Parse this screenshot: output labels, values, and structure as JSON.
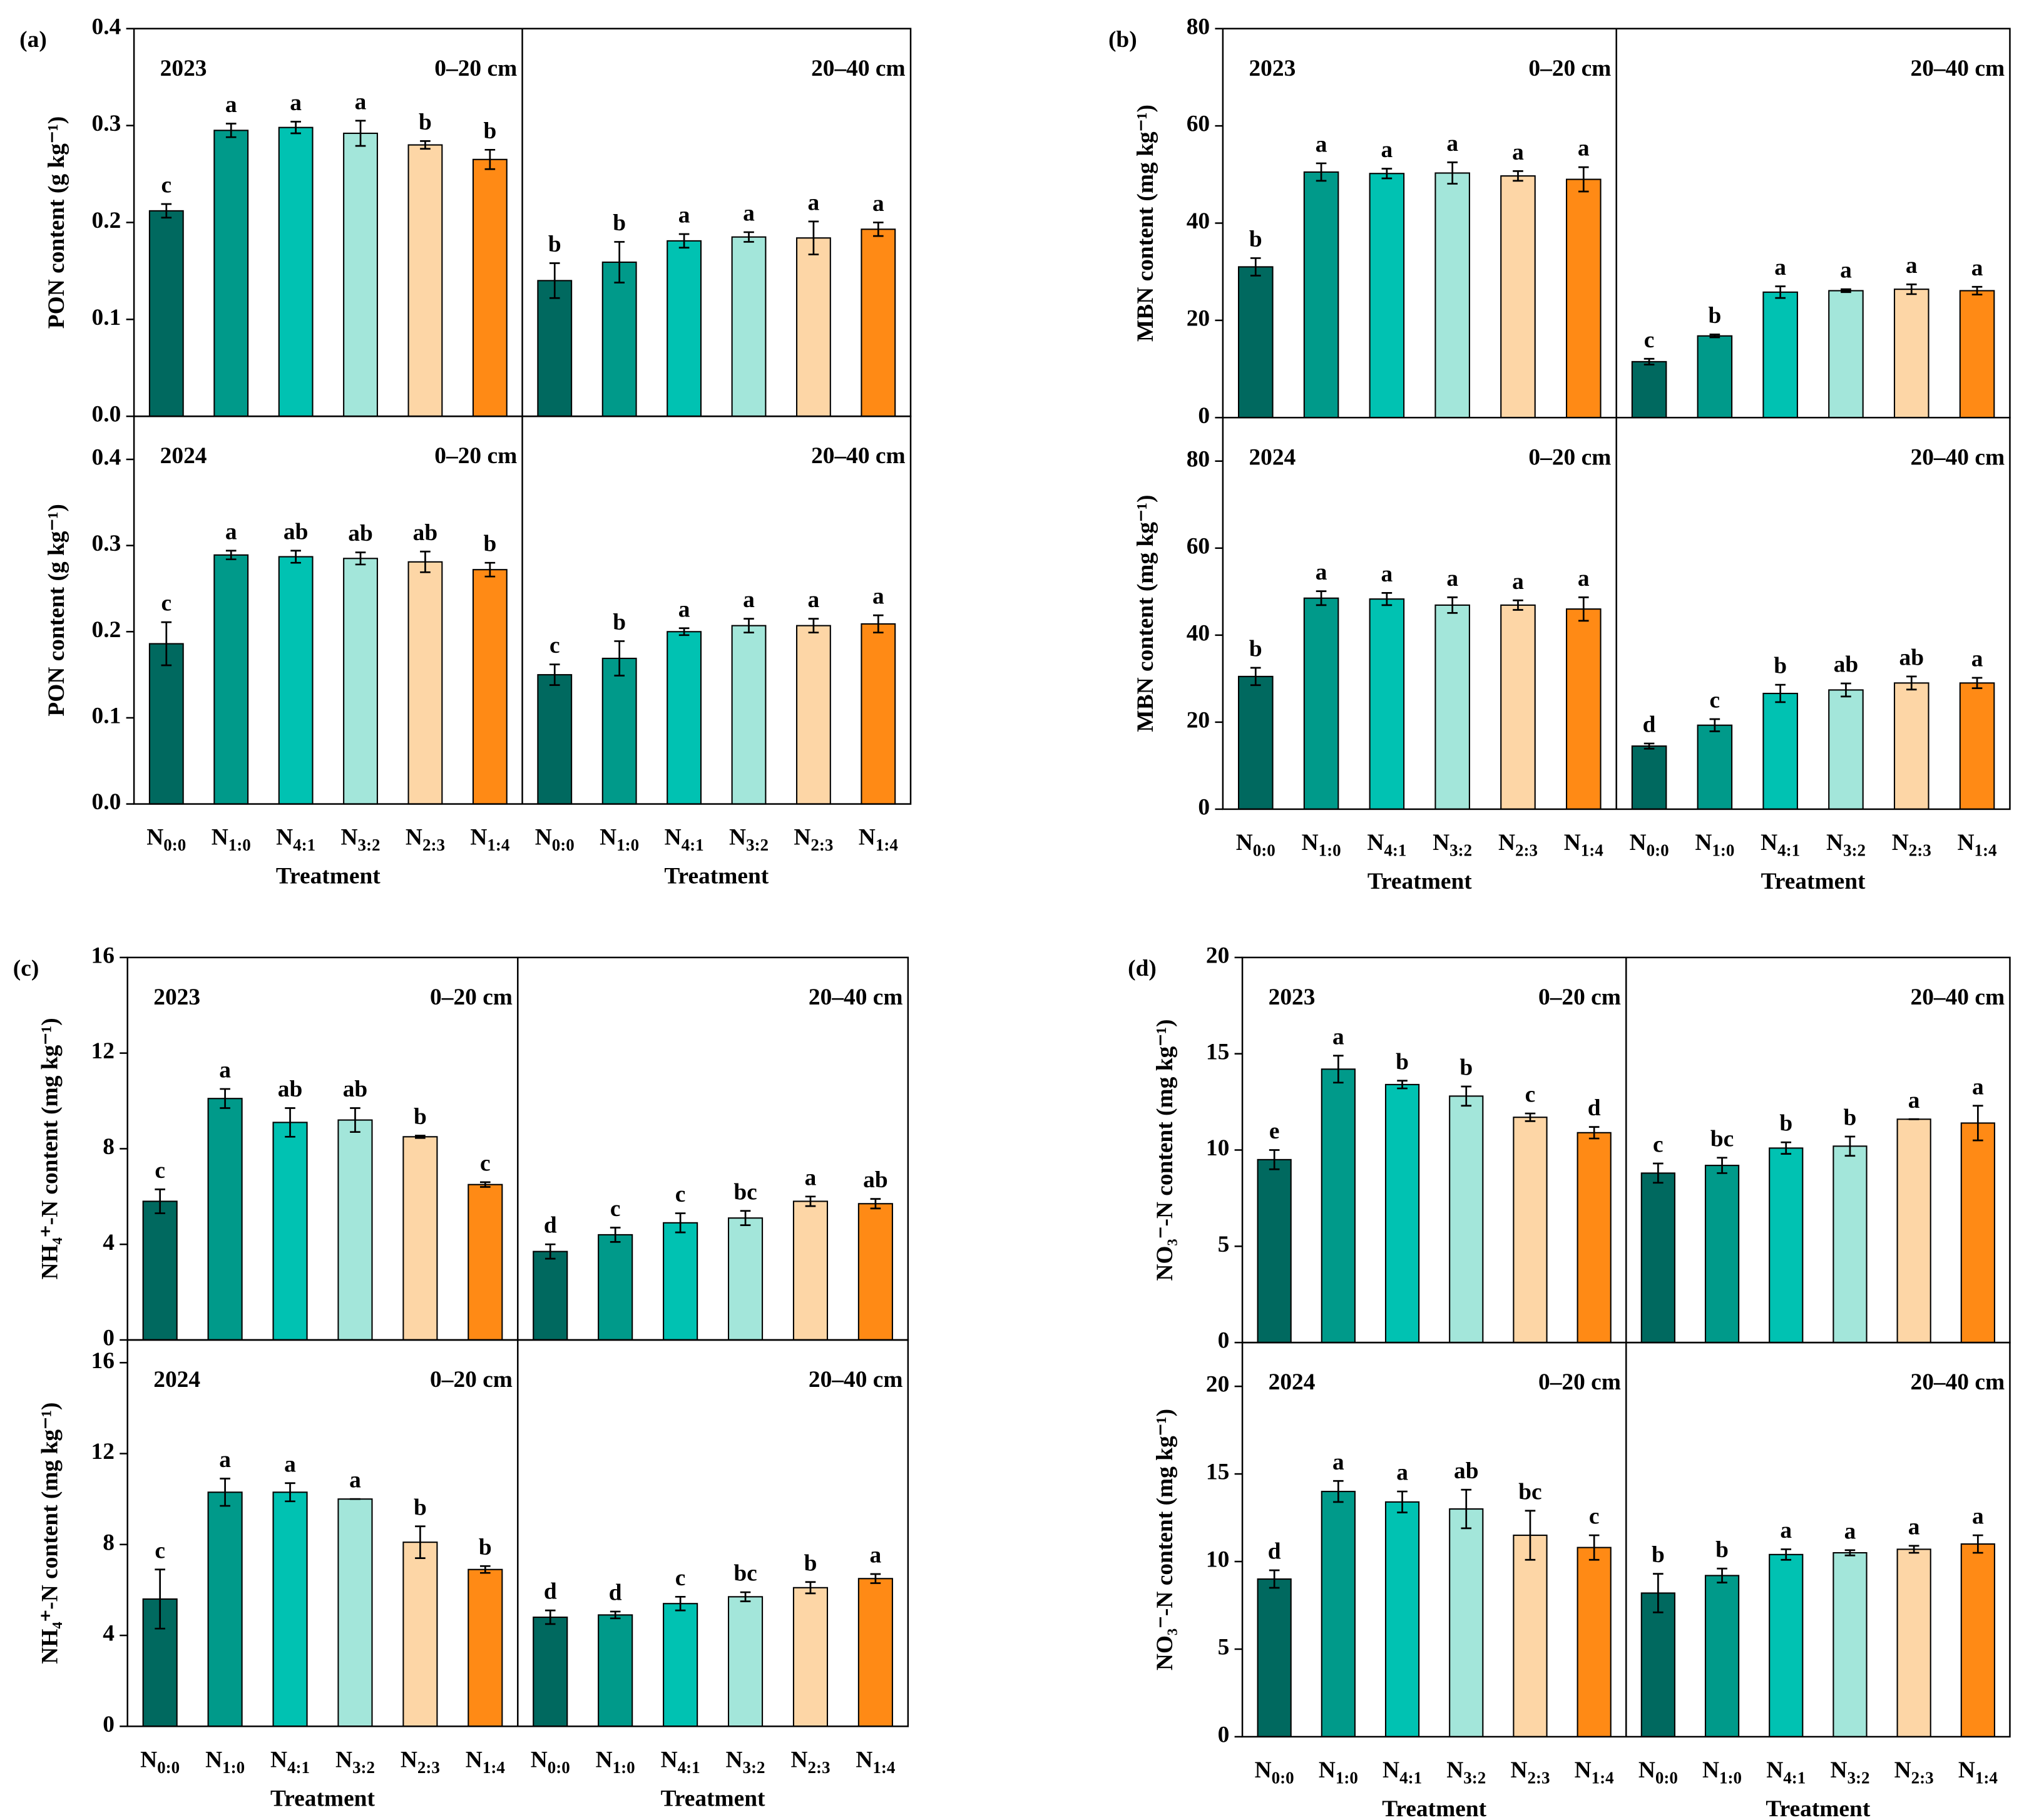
{
  "chart_data": [
    {
      "type": "bar",
      "panel": "(a)",
      "year": "2023",
      "ylabel": "PON content (g kg⁻¹)",
      "categories": [
        "N0:0",
        "N1:0",
        "N4:1",
        "N3:2",
        "N2:3",
        "N1:4"
      ],
      "colors": [
        "#00695f",
        "#009a8a",
        "#00c2b2",
        "#a3e6da",
        "#fdd6a6",
        "#ff8a15"
      ],
      "ylim": [
        0,
        0.4
      ],
      "yticks": [
        {
          "value": 0,
          "label": "0.0"
        },
        0.1,
        0.2,
        0.3,
        0.4
      ],
      "series": [
        {
          "name": "0–20 cm",
          "values": [
            0.212,
            0.295,
            0.298,
            0.292,
            0.28,
            0.265
          ],
          "errors": [
            0.007,
            0.007,
            0.006,
            0.013,
            0.004,
            0.01
          ],
          "letters": [
            "c",
            "a",
            "a",
            "a",
            "b",
            "b"
          ]
        },
        {
          "name": "20–40 cm",
          "values": [
            0.14,
            0.159,
            0.181,
            0.185,
            0.184,
            0.193
          ],
          "errors": [
            0.018,
            0.021,
            0.007,
            0.005,
            0.017,
            0.007
          ],
          "letters": [
            "b",
            "b",
            "a",
            "a",
            "a",
            "a"
          ]
        }
      ]
    },
    {
      "type": "bar",
      "year": "2024",
      "ylabel": "PON content (g kg⁻¹)",
      "xlabel": "Treatment",
      "categories": [
        "N0:0",
        "N1:0",
        "N4:1",
        "N3:2",
        "N2:3",
        "N1:4"
      ],
      "colors": [
        "#00695f",
        "#009a8a",
        "#00c2b2",
        "#a3e6da",
        "#fdd6a6",
        "#ff8a15"
      ],
      "ylim": [
        0,
        0.45
      ],
      "yticks": [
        {
          "value": 0,
          "label": "0.0"
        },
        0.1,
        0.2,
        0.3,
        0.4
      ],
      "series": [
        {
          "name": "0–20 cm",
          "values": [
            0.186,
            0.289,
            0.287,
            0.285,
            0.281,
            0.272
          ],
          "errors": [
            0.025,
            0.005,
            0.007,
            0.007,
            0.012,
            0.008
          ],
          "letters": [
            "c",
            "a",
            "ab",
            "ab",
            "ab",
            "b"
          ]
        },
        {
          "name": "20–40 cm",
          "values": [
            0.15,
            0.169,
            0.2,
            0.207,
            0.207,
            0.209
          ],
          "errors": [
            0.012,
            0.02,
            0.004,
            0.008,
            0.008,
            0.01
          ],
          "letters": [
            "c",
            "b",
            "a",
            "a",
            "a",
            "a"
          ]
        }
      ]
    },
    {
      "type": "bar",
      "panel": "(b)",
      "year": "2023",
      "ylabel": "MBN content (mg kg⁻¹)",
      "categories": [
        "N0:0",
        "N1:0",
        "N4:1",
        "N3:2",
        "N2:3",
        "N1:4"
      ],
      "colors": [
        "#00695f",
        "#009a8a",
        "#00c2b2",
        "#a3e6da",
        "#fdd6a6",
        "#ff8a15"
      ],
      "ylim": [
        0,
        80
      ],
      "yticks": [
        0,
        20,
        40,
        60,
        80
      ],
      "series": [
        {
          "name": "0–20 cm",
          "values": [
            31,
            50.5,
            50.2,
            50.3,
            49.7,
            49
          ],
          "errors": [
            1.8,
            1.8,
            1,
            2.2,
            1,
            2.5
          ],
          "letters": [
            "b",
            "a",
            "a",
            "a",
            "a",
            "a"
          ]
        },
        {
          "name": "20–40 cm",
          "values": [
            11.5,
            16.8,
            25.8,
            26.1,
            26.4,
            26.1
          ],
          "errors": [
            0.6,
            0.3,
            1.2,
            0.3,
            1,
            0.8
          ],
          "letters": [
            "c",
            "b",
            "a",
            "a",
            "a",
            "a"
          ]
        }
      ]
    },
    {
      "type": "bar",
      "year": "2024",
      "ylabel": "MBN content (mg kg⁻¹)",
      "xlabel": "Treatment",
      "categories": [
        "N0:0",
        "N1:0",
        "N4:1",
        "N3:2",
        "N2:3",
        "N1:4"
      ],
      "colors": [
        "#00695f",
        "#009a8a",
        "#00c2b2",
        "#a3e6da",
        "#fdd6a6",
        "#ff8a15"
      ],
      "ylim": [
        0,
        90
      ],
      "yticks": [
        0,
        20,
        40,
        60,
        80
      ],
      "series": [
        {
          "name": "0–20 cm",
          "values": [
            30.5,
            48.5,
            48.3,
            46.9,
            46.9,
            46
          ],
          "errors": [
            2,
            1.6,
            1.4,
            1.8,
            1.1,
            2.7
          ],
          "letters": [
            "b",
            "a",
            "a",
            "a",
            "a",
            "a"
          ]
        },
        {
          "name": "20–40 cm",
          "values": [
            14.5,
            19.3,
            26.6,
            27.4,
            29,
            29
          ],
          "errors": [
            0.6,
            1.4,
            2,
            1.5,
            1.5,
            1.2
          ],
          "letters": [
            "d",
            "c",
            "b",
            "ab",
            "ab",
            "a"
          ]
        }
      ]
    },
    {
      "type": "bar",
      "panel": "(c)",
      "year": "2023",
      "ylabel": "NH₄⁺-N content (mg kg⁻¹)",
      "categories": [
        "N0:0",
        "N1:0",
        "N4:1",
        "N3:2",
        "N2:3",
        "N1:4"
      ],
      "colors": [
        "#00695f",
        "#009a8a",
        "#00c2b2",
        "#a3e6da",
        "#fdd6a6",
        "#ff8a15"
      ],
      "ylim": [
        0,
        16
      ],
      "yticks": [
        0,
        4,
        8,
        12,
        16
      ],
      "series": [
        {
          "name": "0–20 cm",
          "values": [
            5.8,
            10.1,
            9.1,
            9.2,
            8.5,
            6.5
          ],
          "errors": [
            0.5,
            0.4,
            0.6,
            0.5,
            0.05,
            0.1
          ],
          "letters": [
            "c",
            "a",
            "ab",
            "ab",
            "b",
            "c"
          ]
        },
        {
          "name": "20–40 cm",
          "values": [
            3.7,
            4.4,
            4.9,
            5.1,
            5.8,
            5.7
          ],
          "errors": [
            0.3,
            0.3,
            0.4,
            0.3,
            0.2,
            0.2
          ],
          "letters": [
            "d",
            "c",
            "c",
            "bc",
            "a",
            "ab"
          ]
        }
      ]
    },
    {
      "type": "bar",
      "year": "2024",
      "ylabel": "NH₄⁺-N content (mg kg⁻¹)",
      "xlabel": "Treatment",
      "categories": [
        "N0:0",
        "N1:0",
        "N4:1",
        "N3:2",
        "N2:3",
        "N1:4"
      ],
      "colors": [
        "#00695f",
        "#009a8a",
        "#00c2b2",
        "#a3e6da",
        "#fdd6a6",
        "#ff8a15"
      ],
      "ylim": [
        0,
        17
      ],
      "yticks": [
        0,
        4,
        8,
        12,
        16
      ],
      "series": [
        {
          "name": "0–20 cm",
          "values": [
            5.6,
            10.3,
            10.3,
            10,
            8.1,
            6.9
          ],
          "errors": [
            1.3,
            0.6,
            0.4,
            0,
            0.7,
            0.15
          ],
          "letters": [
            "c",
            "a",
            "a",
            "a",
            "b",
            "b"
          ]
        },
        {
          "name": "20–40 cm",
          "values": [
            4.8,
            4.9,
            5.4,
            5.7,
            6.1,
            6.5
          ],
          "errors": [
            0.3,
            0.15,
            0.3,
            0.2,
            0.25,
            0.2
          ],
          "letters": [
            "d",
            "d",
            "c",
            "bc",
            "b",
            "a"
          ]
        }
      ]
    },
    {
      "type": "bar",
      "panel": "(d)",
      "year": "2023",
      "ylabel": "NO₃⁻-N content (mg kg⁻¹)",
      "categories": [
        "N0:0",
        "N1:0",
        "N4:1",
        "N3:2",
        "N2:3",
        "N1:4"
      ],
      "colors": [
        "#00695f",
        "#009a8a",
        "#00c2b2",
        "#a3e6da",
        "#fdd6a6",
        "#ff8a15"
      ],
      "ylim": [
        0,
        20
      ],
      "yticks": [
        0,
        5,
        10,
        15,
        20
      ],
      "series": [
        {
          "name": "0–20 cm",
          "values": [
            9.5,
            14.2,
            13.4,
            12.8,
            11.7,
            10.9
          ],
          "errors": [
            0.5,
            0.7,
            0.2,
            0.5,
            0.2,
            0.3
          ],
          "letters": [
            "e",
            "a",
            "b",
            "b",
            "c",
            "d"
          ]
        },
        {
          "name": "20–40 cm",
          "values": [
            8.8,
            9.2,
            10.1,
            10.2,
            11.6,
            11.4
          ],
          "errors": [
            0.5,
            0.4,
            0.3,
            0.5,
            0,
            0.9
          ],
          "letters": [
            "c",
            "bc",
            "b",
            "b",
            "a",
            "a"
          ]
        }
      ]
    },
    {
      "type": "bar",
      "year": "2024",
      "ylabel": "NO₃⁻-N content (mg kg⁻¹)",
      "xlabel": "Treatment",
      "categories": [
        "N0:0",
        "N1:0",
        "N4:1",
        "N3:2",
        "N2:3",
        "N1:4"
      ],
      "colors": [
        "#00695f",
        "#009a8a",
        "#00c2b2",
        "#a3e6da",
        "#fdd6a6",
        "#ff8a15"
      ],
      "ylim": [
        0,
        22.5
      ],
      "yticks": [
        0,
        5,
        10,
        15,
        20
      ],
      "series": [
        {
          "name": "0–20 cm",
          "values": [
            9,
            14,
            13.4,
            13,
            11.5,
            10.8
          ],
          "errors": [
            0.5,
            0.6,
            0.6,
            1.1,
            1.4,
            0.7
          ],
          "letters": [
            "d",
            "a",
            "a",
            "ab",
            "bc",
            "c"
          ]
        },
        {
          "name": "20–40 cm",
          "values": [
            8.2,
            9.2,
            10.4,
            10.5,
            10.7,
            11
          ],
          "errors": [
            1.1,
            0.4,
            0.3,
            0.15,
            0.2,
            0.5
          ],
          "letters": [
            "b",
            "b",
            "a",
            "a",
            "a",
            "a"
          ]
        }
      ]
    }
  ]
}
